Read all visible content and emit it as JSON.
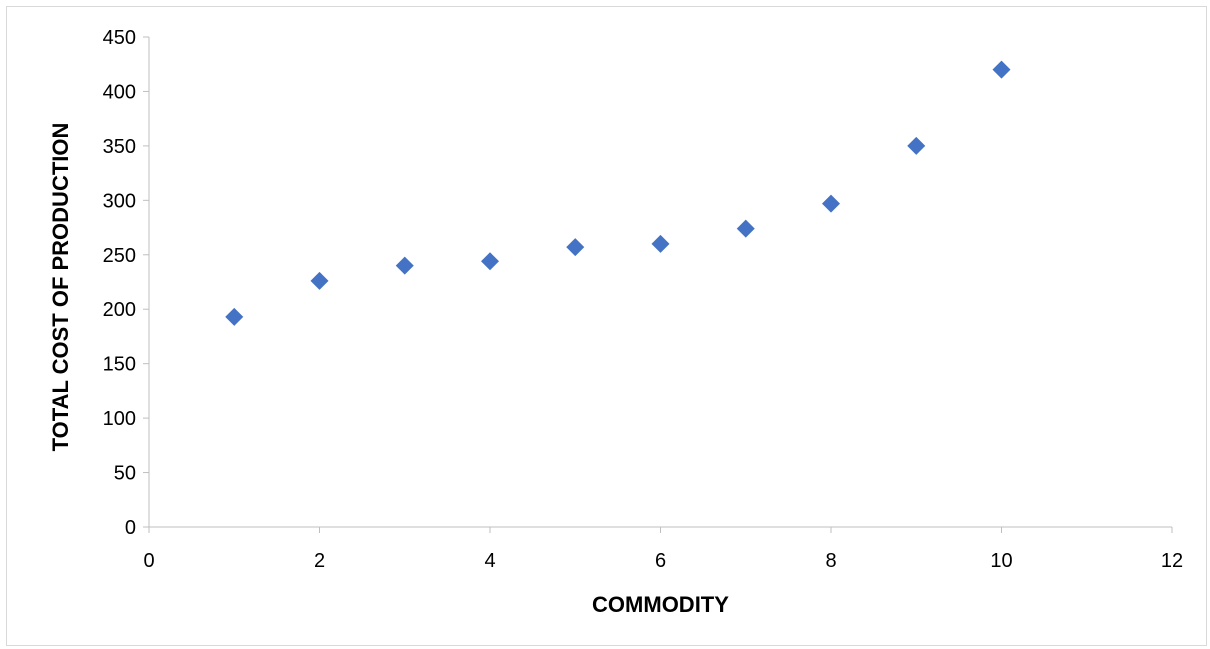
{
  "chart_data": {
    "type": "scatter",
    "title": "",
    "xlabel": "COMMODITY",
    "ylabel": "TOTAL COST OF PRODUCTION",
    "xlim": [
      0,
      12
    ],
    "ylim": [
      0,
      450
    ],
    "x_ticks": [
      0,
      2,
      4,
      6,
      8,
      10,
      12
    ],
    "y_ticks": [
      0,
      50,
      100,
      150,
      200,
      250,
      300,
      350,
      400,
      450
    ],
    "grid": false,
    "legend": "none",
    "marker": "diamond",
    "marker_color": "#4472c4",
    "series": [
      {
        "x": [
          1,
          2,
          3,
          4,
          5,
          6,
          7,
          8,
          9,
          10
        ],
        "y": [
          193,
          226,
          240,
          244,
          257,
          260,
          274,
          297,
          350,
          420
        ]
      }
    ]
  }
}
